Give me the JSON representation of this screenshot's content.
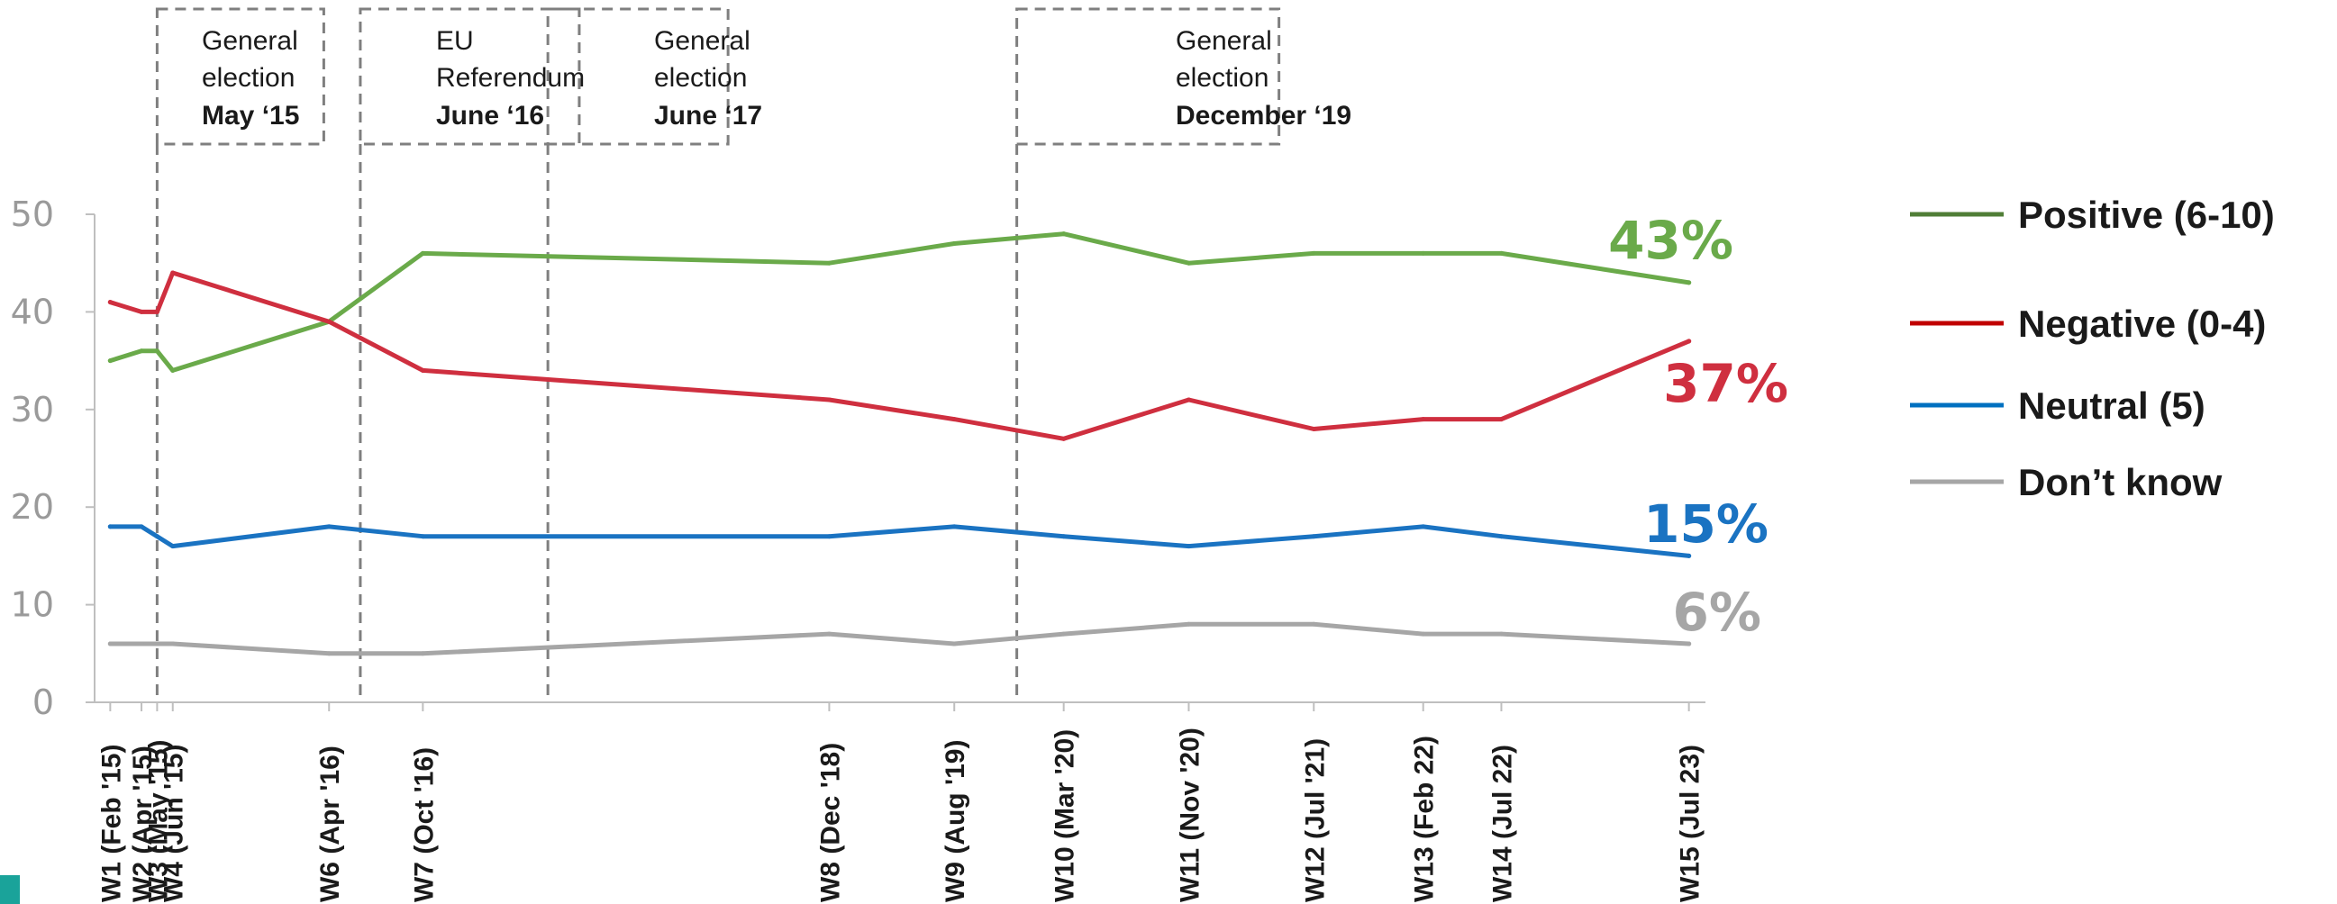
{
  "chart_data": {
    "type": "line",
    "categories": [
      "W1 (Feb '15)",
      "W2 (Apr '15)",
      "W3 (May '15)",
      "W4 (Jun '15)",
      "W6 (Apr '16)",
      "W7 (Oct '16)",
      "W8 (Dec '18)",
      "W9 (Aug '19)",
      "W10 (Mar '20)",
      "W11 (Nov '20)",
      "W12 (Jul '21)",
      "W13 (Feb 22)",
      "W14 (Jul 22)",
      "W15 (Jul 23)"
    ],
    "ylim": [
      0,
      50
    ],
    "yticks": [
      "0",
      "10",
      "20",
      "30",
      "40",
      "50"
    ],
    "grid": false,
    "legend_position": "right",
    "series": [
      {
        "name": "Positive (6-10)",
        "color": "#6aaa4a",
        "legend_color": "#507e37",
        "end_label": "43%",
        "points": [
          [
            "2015-02",
            35
          ],
          [
            "2015-04",
            36
          ],
          [
            "2015-05",
            36
          ],
          [
            "2015-06",
            34
          ],
          [
            "2016-04",
            39
          ],
          [
            "2016-10",
            46
          ],
          [
            "2018-12",
            45
          ],
          [
            "2019-08",
            47
          ],
          [
            "2020-03",
            48
          ],
          [
            "2020-11",
            45
          ],
          [
            "2021-07",
            46
          ],
          [
            "2022-02",
            46
          ],
          [
            "2022-07",
            46
          ],
          [
            "2023-07",
            43
          ]
        ]
      },
      {
        "name": "Negative (0-4)",
        "color": "#cf2f3f",
        "legend_color": "#c00000",
        "end_label": "37%",
        "points": [
          [
            "2015-02",
            41
          ],
          [
            "2015-04",
            40
          ],
          [
            "2015-05",
            40
          ],
          [
            "2015-06",
            44
          ],
          [
            "2016-04",
            39
          ],
          [
            "2016-10",
            34
          ],
          [
            "2018-12",
            31
          ],
          [
            "2019-08",
            29
          ],
          [
            "2020-03",
            27
          ],
          [
            "2020-11",
            31
          ],
          [
            "2021-07",
            28
          ],
          [
            "2022-02",
            29
          ],
          [
            "2022-07",
            29
          ],
          [
            "2023-07",
            37
          ]
        ]
      },
      {
        "name": "Neutral (5)",
        "color": "#1a73c2",
        "legend_color": "#0070c0",
        "end_label": "15%",
        "points": [
          [
            "2015-02",
            18
          ],
          [
            "2015-04",
            18
          ],
          [
            "2015-05",
            17
          ],
          [
            "2015-06",
            16
          ],
          [
            "2016-04",
            18
          ],
          [
            "2016-10",
            17
          ],
          [
            "2018-12",
            17
          ],
          [
            "2019-08",
            18
          ],
          [
            "2020-03",
            17
          ],
          [
            "2020-11",
            16
          ],
          [
            "2021-07",
            17
          ],
          [
            "2022-02",
            18
          ],
          [
            "2022-07",
            17
          ],
          [
            "2023-07",
            15
          ]
        ]
      },
      {
        "name": "Don’t know",
        "color": "#a6a6a6",
        "legend_color": "#a6a6a6",
        "end_label": "6%",
        "points": [
          [
            "2015-02",
            6
          ],
          [
            "2015-04",
            6
          ],
          [
            "2015-05",
            6
          ],
          [
            "2015-06",
            6
          ],
          [
            "2016-04",
            5
          ],
          [
            "2016-10",
            5
          ],
          [
            "2018-12",
            7
          ],
          [
            "2019-08",
            6
          ],
          [
            "2020-03",
            7
          ],
          [
            "2020-11",
            8
          ],
          [
            "2021-07",
            8
          ],
          [
            "2022-02",
            7
          ],
          [
            "2022-07",
            7
          ],
          [
            "2023-07",
            6
          ]
        ]
      }
    ],
    "annotations": [
      {
        "line1": "General",
        "line2": "election",
        "line3": "May ‘15",
        "date": "2015-05"
      },
      {
        "line1": "EU",
        "line2": "Referendum",
        "line3": "June ‘16",
        "date": "2016-06"
      },
      {
        "line1": "General",
        "line2": "election",
        "line3": "June ‘17",
        "date": "2017-06"
      },
      {
        "line1": "General",
        "line2": "election",
        "line3": "December ‘19",
        "date": "2019-12"
      }
    ]
  }
}
